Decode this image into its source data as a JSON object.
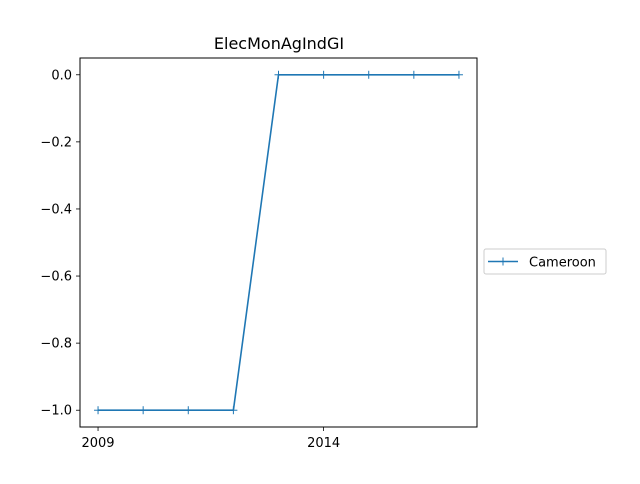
{
  "chart_data": {
    "type": "line",
    "title": "ElecMonAgIndGI",
    "xlabel": "",
    "ylabel": "",
    "x": [
      2009,
      2010,
      2011,
      2012,
      2013,
      2014,
      2015,
      2016,
      2017
    ],
    "series": [
      {
        "name": "Cameroon",
        "color": "#1f77b4",
        "marker": "plus",
        "values": [
          -1.0,
          -1.0,
          -1.0,
          -1.0,
          0.0,
          0.0,
          0.0,
          0.0,
          0.0
        ]
      }
    ],
    "x_ticks": [
      2009,
      2014
    ],
    "x_tick_labels": [
      "2009",
      "2014"
    ],
    "y_ticks": [
      0.0,
      -0.2,
      -0.4,
      -0.6,
      -0.8,
      -1.0
    ],
    "y_tick_labels": [
      "0.0",
      "−0.2",
      "−0.4",
      "−0.6",
      "−0.8",
      "−1.0"
    ],
    "xlim": [
      2008.6,
      2017.4
    ],
    "ylim": [
      -1.05,
      0.05
    ],
    "grid": false,
    "legend_position": "center-right, outside axes"
  }
}
